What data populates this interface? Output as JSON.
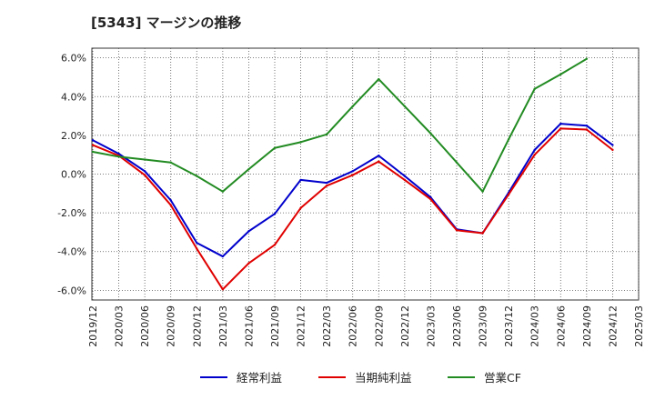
{
  "chart_data": {
    "type": "line",
    "title": "[5343]  マージンの推移",
    "xlabel": "",
    "ylabel": "",
    "ylim": [
      -6.5,
      6.5
    ],
    "yticks": [
      6,
      4,
      2,
      0,
      -2,
      -4,
      -6
    ],
    "ytick_labels": [
      "6.0%",
      "4.0%",
      "2.0%",
      "0.0%",
      "-2.0%",
      "-4.0%",
      "-6.0%"
    ],
    "x": [
      "2019/12",
      "2020/03",
      "2020/06",
      "2020/09",
      "2020/12",
      "2021/03",
      "2021/06",
      "2021/09",
      "2021/12",
      "2022/03",
      "2022/06",
      "2022/09",
      "2022/12",
      "2023/03",
      "2023/06",
      "2023/09",
      "2023/12",
      "2024/03",
      "2024/06",
      "2024/09",
      "2024/12",
      "2025/03"
    ],
    "grid": true,
    "legend_position": "bottom",
    "series": [
      {
        "name": "経常利益",
        "color": "#0000cc",
        "values": [
          1.75,
          1.05,
          0.15,
          -1.35,
          -3.55,
          -4.25,
          -2.95,
          -2.05,
          -0.3,
          -0.45,
          0.15,
          0.95,
          -0.1,
          -1.2,
          -2.85,
          -3.05,
          -0.95,
          1.25,
          2.6,
          2.5,
          1.5,
          null
        ]
      },
      {
        "name": "当期純利益",
        "color": "#e00000",
        "values": [
          1.5,
          0.95,
          -0.05,
          -1.6,
          -3.85,
          -5.95,
          -4.6,
          -3.65,
          -1.75,
          -0.6,
          -0.05,
          0.65,
          -0.3,
          -1.3,
          -2.9,
          -3.05,
          -1.05,
          1.0,
          2.35,
          2.3,
          1.25,
          null
        ]
      },
      {
        "name": "営業CF",
        "color": "#228b22",
        "values": [
          1.15,
          0.9,
          0.75,
          0.6,
          -0.1,
          -0.9,
          0.25,
          1.35,
          1.65,
          2.05,
          3.5,
          4.9,
          3.5,
          2.1,
          0.6,
          -0.9,
          1.8,
          4.4,
          5.15,
          5.95,
          null,
          null
        ]
      }
    ]
  }
}
